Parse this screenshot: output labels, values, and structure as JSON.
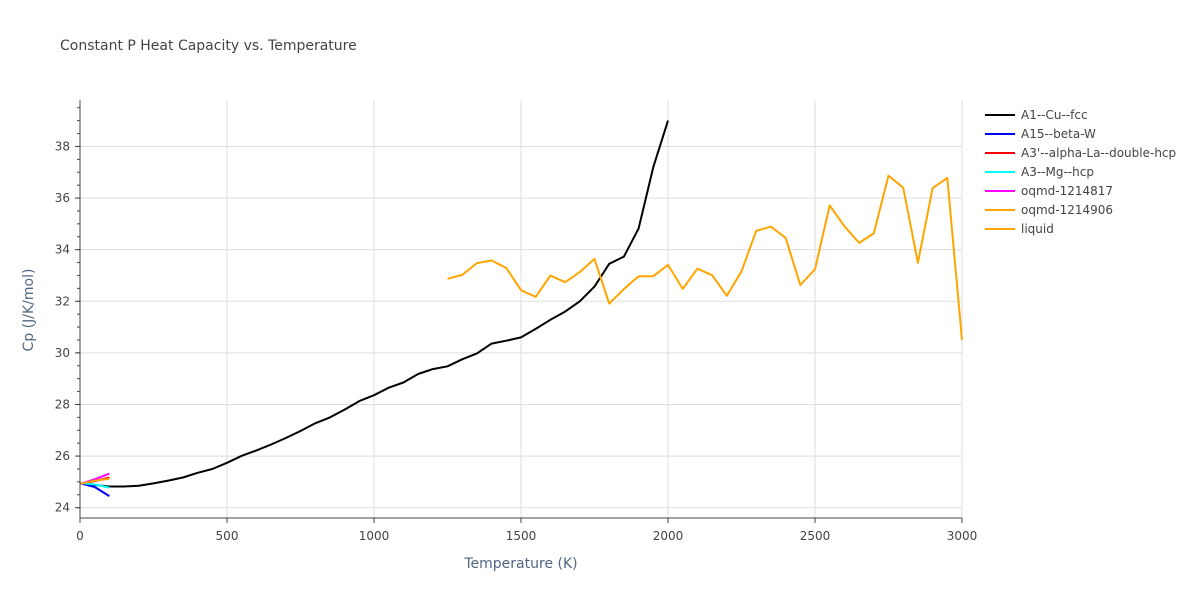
{
  "chart_data": {
    "type": "line",
    "title": "Constant P Heat Capacity vs. Temperature",
    "xlabel": "Temperature (K)",
    "ylabel": "Cp (J/K/mol)",
    "xlim": [
      0,
      3000
    ],
    "ylim": [
      23.6,
      39.8
    ],
    "xticks": [
      0,
      500,
      1000,
      1500,
      2000,
      2500,
      3000
    ],
    "yticks": [
      24,
      26,
      28,
      30,
      32,
      34,
      36,
      38
    ],
    "grid": true,
    "legend_position": "top-right",
    "series": [
      {
        "name": "A1--Cu--fcc",
        "color": "#000000",
        "x": [
          0,
          50,
          100,
          150,
          200,
          250,
          300,
          350,
          400,
          450,
          500,
          550,
          600,
          650,
          700,
          750,
          800,
          850,
          900,
          950,
          1000,
          1050,
          1100,
          1150,
          1200,
          1250,
          1300,
          1350,
          1400,
          1450,
          1500,
          1550,
          1600,
          1650,
          1700,
          1750,
          1800,
          1850,
          1900,
          1950,
          2000
        ],
        "y": [
          24.95,
          24.88,
          24.82,
          24.82,
          24.85,
          24.94,
          25.05,
          25.17,
          25.35,
          25.5,
          25.74,
          26.01,
          26.22,
          26.45,
          26.7,
          26.97,
          27.27,
          27.5,
          27.8,
          28.13,
          28.36,
          28.65,
          28.85,
          29.18,
          29.37,
          29.48,
          29.75,
          29.98,
          30.36,
          30.47,
          30.6,
          30.93,
          31.28,
          31.6,
          32.0,
          32.57,
          33.45,
          33.73,
          34.82,
          37.2,
          39.0
        ]
      },
      {
        "name": "A15--beta-W",
        "color": "#0000ff",
        "x": [
          0,
          50,
          100
        ],
        "y": [
          24.95,
          24.8,
          24.45
        ]
      },
      {
        "name": "A3'--alpha-La--double-hcp",
        "color": "#ff0000",
        "x": [
          0,
          50,
          100
        ],
        "y": [
          24.92,
          25.03,
          25.17
        ]
      },
      {
        "name": "A3--Mg--hcp",
        "color": "#00ffff",
        "x": [
          0,
          50,
          100
        ],
        "y": [
          24.96,
          24.9,
          24.78
        ]
      },
      {
        "name": "oqmd-1214817",
        "color": "#ff00ff",
        "x": [
          0,
          50,
          100
        ],
        "y": [
          24.92,
          25.1,
          25.32
        ]
      },
      {
        "name": "oqmd-1214906",
        "color": "#ffa500",
        "x": [
          0,
          50,
          100
        ],
        "y": [
          24.93,
          25.04,
          25.12
        ]
      },
      {
        "name": "liquid",
        "color": "#ffa500",
        "x": [
          1250,
          1300,
          1350,
          1400,
          1450,
          1500,
          1550,
          1600,
          1650,
          1700,
          1750,
          1800,
          1850,
          1900,
          1950,
          2000,
          2050,
          2100,
          2150,
          2200,
          2250,
          2300,
          2350,
          2400,
          2450,
          2500,
          2550,
          2600,
          2650,
          2700,
          2750,
          2800,
          2850,
          2900,
          2950,
          3000
        ],
        "y": [
          32.87,
          33.02,
          33.48,
          33.58,
          33.29,
          32.43,
          32.17,
          33.0,
          32.74,
          33.13,
          33.64,
          31.91,
          32.47,
          32.97,
          32.97,
          33.41,
          32.48,
          33.26,
          33.01,
          32.21,
          33.16,
          34.73,
          34.89,
          34.46,
          32.63,
          33.24,
          35.71,
          34.91,
          34.26,
          34.63,
          36.87,
          36.4,
          33.49,
          36.38,
          36.78,
          30.5
        ]
      }
    ]
  }
}
